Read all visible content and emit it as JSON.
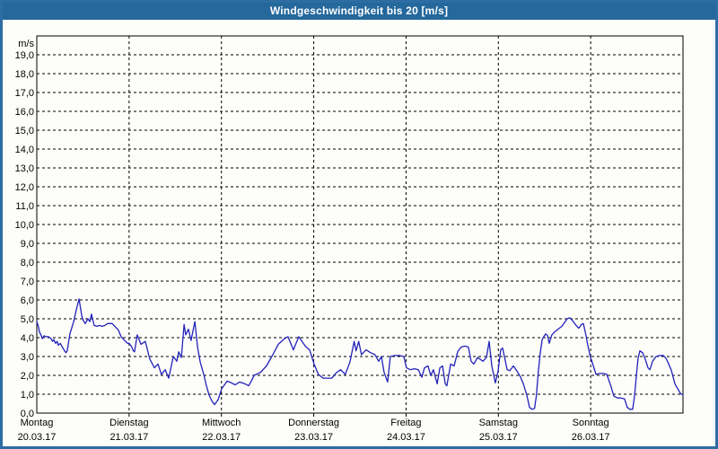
{
  "window": {
    "title": "Windgeschwindigkeit bis 20 [m/s]"
  },
  "colors": {
    "titlebar": "#24689c",
    "frame": "#2e6da4",
    "line": "#2222bb",
    "grid": "#000000",
    "background": "#fdfdfa"
  },
  "chart_data": {
    "type": "line",
    "title": "Windgeschwindigkeit bis 20 [m/s]",
    "ylabel": "m/s",
    "ylim": [
      0,
      20
    ],
    "ytick_step": 1,
    "grid": "dashed",
    "legend": "none",
    "ytick_labels": [
      "0,0",
      "1,0",
      "2,0",
      "3,0",
      "4,0",
      "5,0",
      "6,0",
      "7,0",
      "8,0",
      "9,0",
      "10,0",
      "11,0",
      "12,0",
      "13,0",
      "14,0",
      "15,0",
      "16,0",
      "17,0",
      "18,0",
      "19,0"
    ],
    "x_unit": "hours_from_monday_00h",
    "xlim": [
      0,
      168
    ],
    "days": [
      {
        "label": "Montag",
        "date": "20.03.17"
      },
      {
        "label": "Dienstag",
        "date": "21.03.17"
      },
      {
        "label": "Mittwoch",
        "date": "22.03.17"
      },
      {
        "label": "Donnerstag",
        "date": "23.03.17"
      },
      {
        "label": "Freitag",
        "date": "24.03.17"
      },
      {
        "label": "Samstag",
        "date": "25.03.17"
      },
      {
        "label": "Sonntag",
        "date": "26.03.17"
      }
    ],
    "series": [
      {
        "name": "Windgeschwindigkeit",
        "unit": "m/s",
        "color": "#2222bb",
        "points": [
          [
            0,
            4.85
          ],
          [
            0.4,
            4.6
          ],
          [
            0.7,
            4.3
          ],
          [
            1.2,
            4.1
          ],
          [
            1.4,
            3.95
          ],
          [
            1.9,
            4.1
          ],
          [
            2.3,
            4.05
          ],
          [
            3,
            4.05
          ],
          [
            3.7,
            3.95
          ],
          [
            4.1,
            3.8
          ],
          [
            4.4,
            3.9
          ],
          [
            4.9,
            3.7
          ],
          [
            5.3,
            3.8
          ],
          [
            5.6,
            3.6
          ],
          [
            6.1,
            3.7
          ],
          [
            6.8,
            3.45
          ],
          [
            7.2,
            3.3
          ],
          [
            7.6,
            3.2
          ],
          [
            7.9,
            3.3
          ],
          [
            8.6,
            4.2
          ],
          [
            9.6,
            4.85
          ],
          [
            10.3,
            5.5
          ],
          [
            11,
            6.05
          ],
          [
            11.7,
            5.15
          ],
          [
            12.1,
            4.9
          ],
          [
            12.6,
            4.75
          ],
          [
            13.3,
            5
          ],
          [
            13.8,
            4.85
          ],
          [
            14.2,
            5.25
          ],
          [
            14.9,
            4.65
          ],
          [
            15.6,
            4.6
          ],
          [
            16.3,
            4.65
          ],
          [
            17,
            4.6
          ],
          [
            17.7,
            4.65
          ],
          [
            18.4,
            4.75
          ],
          [
            19.6,
            4.75
          ],
          [
            20.3,
            4.6
          ],
          [
            21.2,
            4.4
          ],
          [
            21.9,
            4.05
          ],
          [
            22.6,
            3.9
          ],
          [
            23.6,
            3.7
          ],
          [
            24,
            3.7
          ],
          [
            24.7,
            3.5
          ],
          [
            25.1,
            3.3
          ],
          [
            25.4,
            3.25
          ],
          [
            26.1,
            4.15
          ],
          [
            27.1,
            3.65
          ],
          [
            28.2,
            3.8
          ],
          [
            29.4,
            2.85
          ],
          [
            30.6,
            2.4
          ],
          [
            31.5,
            2.6
          ],
          [
            32.4,
            2.05
          ],
          [
            33.4,
            2.3
          ],
          [
            34.3,
            1.85
          ],
          [
            35.5,
            3
          ],
          [
            36.4,
            2.75
          ],
          [
            36.9,
            3.25
          ],
          [
            37.6,
            2.95
          ],
          [
            38.3,
            4.7
          ],
          [
            38.7,
            4.15
          ],
          [
            39.4,
            4.45
          ],
          [
            40.1,
            3.85
          ],
          [
            41.1,
            4.85
          ],
          [
            41.8,
            3.5
          ],
          [
            42.5,
            2.7
          ],
          [
            43.4,
            2.05
          ],
          [
            44.1,
            1.45
          ],
          [
            44.8,
            0.95
          ],
          [
            45.5,
            0.65
          ],
          [
            46.2,
            0.45
          ],
          [
            47.1,
            0.7
          ],
          [
            48.1,
            1.3
          ],
          [
            49,
            1.55
          ],
          [
            49.5,
            1.7
          ],
          [
            50.6,
            1.6
          ],
          [
            51.6,
            1.5
          ],
          [
            52.7,
            1.65
          ],
          [
            54.1,
            1.55
          ],
          [
            55.1,
            1.45
          ],
          [
            55.8,
            1.7
          ],
          [
            56.5,
            2
          ],
          [
            58.1,
            2.15
          ],
          [
            59.7,
            2.5
          ],
          [
            61.1,
            3
          ],
          [
            62.8,
            3.65
          ],
          [
            64.4,
            3.95
          ],
          [
            65.3,
            4.05
          ],
          [
            66.7,
            3.35
          ],
          [
            68.1,
            4.05
          ],
          [
            69.8,
            3.55
          ],
          [
            70.9,
            3.35
          ],
          [
            72.1,
            2.6
          ],
          [
            73.2,
            2.05
          ],
          [
            74.4,
            1.85
          ],
          [
            75.6,
            1.85
          ],
          [
            76.7,
            1.85
          ],
          [
            77.9,
            2.15
          ],
          [
            79,
            2.3
          ],
          [
            80.2,
            2.05
          ],
          [
            81.4,
            2.7
          ],
          [
            82.5,
            3.8
          ],
          [
            83,
            3.3
          ],
          [
            83.7,
            3.8
          ],
          [
            84.4,
            3.1
          ],
          [
            85.6,
            3.35
          ],
          [
            86.8,
            3.2
          ],
          [
            87.9,
            3.1
          ],
          [
            88.9,
            2.75
          ],
          [
            89.6,
            3
          ],
          [
            90.3,
            2.15
          ],
          [
            91.2,
            1.65
          ],
          [
            91.9,
            3
          ],
          [
            93.1,
            3.05
          ],
          [
            94.3,
            3.05
          ],
          [
            95.4,
            3
          ],
          [
            96.1,
            2.4
          ],
          [
            97.1,
            2.3
          ],
          [
            98.2,
            2.35
          ],
          [
            99.2,
            2.3
          ],
          [
            100.1,
            1.9
          ],
          [
            100.8,
            2.4
          ],
          [
            101.7,
            2.5
          ],
          [
            102.4,
            2
          ],
          [
            103.1,
            2.3
          ],
          [
            104.1,
            1.55
          ],
          [
            104.8,
            2.4
          ],
          [
            105.5,
            2.5
          ],
          [
            106.2,
            1.55
          ],
          [
            106.6,
            1.45
          ],
          [
            107.6,
            2.6
          ],
          [
            108.5,
            2.5
          ],
          [
            109.4,
            3.25
          ],
          [
            110.3,
            3.5
          ],
          [
            111.3,
            3.55
          ],
          [
            112.2,
            3.5
          ],
          [
            112.9,
            2.75
          ],
          [
            113.6,
            2.6
          ],
          [
            114.6,
            2.95
          ],
          [
            115.3,
            2.85
          ],
          [
            116,
            2.75
          ],
          [
            116.9,
            2.95
          ],
          [
            117.6,
            3.8
          ],
          [
            118.3,
            2.5
          ],
          [
            119.2,
            1.6
          ],
          [
            119.9,
            2.2
          ],
          [
            120.6,
            3.35
          ],
          [
            121.1,
            3.45
          ],
          [
            122.3,
            2.3
          ],
          [
            123,
            2.25
          ],
          [
            123.9,
            2.5
          ],
          [
            125.1,
            2.15
          ],
          [
            125.8,
            1.9
          ],
          [
            126.5,
            1.55
          ],
          [
            127.4,
            0.95
          ],
          [
            128.1,
            0.3
          ],
          [
            128.8,
            0.2
          ],
          [
            129.4,
            0.25
          ],
          [
            129.9,
            0.95
          ],
          [
            130.4,
            2.25
          ],
          [
            130.9,
            3.2
          ],
          [
            131.4,
            3.9
          ],
          [
            131.8,
            4.05
          ],
          [
            132.3,
            4.2
          ],
          [
            132.8,
            4.1
          ],
          [
            133.2,
            3.7
          ],
          [
            133.9,
            4.15
          ],
          [
            134.6,
            4.3
          ],
          [
            135.5,
            4.45
          ],
          [
            136.5,
            4.6
          ],
          [
            137.2,
            4.8
          ],
          [
            137.9,
            5
          ],
          [
            138.6,
            5.05
          ],
          [
            139.3,
            4.9
          ],
          [
            140.2,
            4.65
          ],
          [
            140.9,
            4.5
          ],
          [
            141.6,
            4.7
          ],
          [
            142.1,
            4.75
          ],
          [
            142.8,
            4.1
          ],
          [
            143.2,
            3.65
          ],
          [
            143.9,
            3
          ],
          [
            144.7,
            2.5
          ],
          [
            145.4,
            2.05
          ],
          [
            146.3,
            2.1
          ],
          [
            147.2,
            2.1
          ],
          [
            148.2,
            2.05
          ],
          [
            149.3,
            1.4
          ],
          [
            150,
            0.9
          ],
          [
            151,
            0.8
          ],
          [
            151.9,
            0.8
          ],
          [
            152.8,
            0.75
          ],
          [
            153.5,
            0.3
          ],
          [
            154.2,
            0.2
          ],
          [
            154.9,
            0.2
          ],
          [
            155.4,
            0.9
          ],
          [
            155.9,
            2
          ],
          [
            156.3,
            2.9
          ],
          [
            156.8,
            3.3
          ],
          [
            157.5,
            3.2
          ],
          [
            158.2,
            2.85
          ],
          [
            158.9,
            2.4
          ],
          [
            159.4,
            2.3
          ],
          [
            160.1,
            2.75
          ],
          [
            161,
            3
          ],
          [
            161.9,
            3.05
          ],
          [
            162.9,
            3.05
          ],
          [
            163.6,
            2.9
          ],
          [
            164.3,
            2.6
          ],
          [
            165,
            2.25
          ],
          [
            165.9,
            1.55
          ],
          [
            166.6,
            1.3
          ],
          [
            167.3,
            1.05
          ],
          [
            168,
            0.95
          ]
        ]
      }
    ]
  }
}
